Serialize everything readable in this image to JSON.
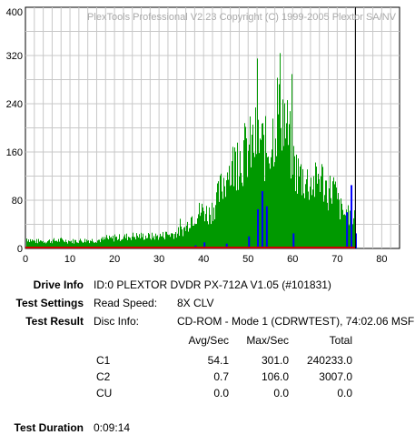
{
  "chart_data": {
    "type": "bar",
    "watermark": "PlexTools Professional V2.23 Copyright (C) 1999-2005 Plextor SA/NV",
    "x_ticks": [
      0,
      10,
      20,
      30,
      40,
      50,
      60,
      70,
      80
    ],
    "y_ticks": [
      0,
      80,
      160,
      240,
      320,
      400
    ],
    "xlim": [
      0,
      84
    ],
    "ylim": [
      0,
      400
    ],
    "grid": true,
    "cursor_x": 74.1,
    "series": [
      {
        "color": "#009900",
        "x": [
          0,
          2,
          4,
          6,
          8,
          10,
          12,
          14,
          16,
          18,
          20,
          22,
          24,
          26,
          28,
          30,
          32,
          34,
          36,
          37,
          38,
          39,
          40,
          41,
          42,
          43,
          44,
          45,
          46,
          47,
          48,
          49,
          50,
          51,
          52,
          53,
          54,
          55,
          56,
          57,
          58,
          59,
          60,
          61,
          62,
          63,
          64,
          65,
          66,
          67,
          68,
          69,
          70,
          71,
          72,
          73,
          74
        ],
        "values": [
          20,
          14,
          14,
          15,
          16,
          14,
          15,
          16,
          16,
          18,
          20,
          22,
          24,
          24,
          23,
          24,
          27,
          30,
          40,
          60,
          65,
          70,
          75,
          65,
          80,
          95,
          120,
          145,
          150,
          170,
          175,
          185,
          190,
          200,
          215,
          200,
          190,
          210,
          240,
          300,
          250,
          215,
          170,
          145,
          140,
          130,
          130,
          125,
          145,
          125,
          110,
          120,
          90,
          70,
          65,
          60,
          75
        ]
      },
      {
        "color": "#0000ff",
        "x": [
          38,
          40,
          45,
          50,
          52,
          53,
          54,
          60,
          72,
          73,
          74
        ],
        "values": [
          5,
          10,
          8,
          20,
          65,
          95,
          70,
          25,
          60,
          105,
          25
        ]
      }
    ]
  },
  "info": {
    "drive_label": "Drive Info",
    "drive_value": "ID:0 PLEXTOR DVDR PX-712A V1.05 (#101831)",
    "settings_label": "Test Settings",
    "read_speed_label": "Read Speed:",
    "read_speed_value": "8X CLV",
    "result_label": "Test Result",
    "disc_info_label": "Disc Info:",
    "disc_info_value": "CD-ROM - Mode 1 (CDRWTEST), 74:02.06 MSF",
    "table_headers": [
      "Avg/Sec",
      "Max/Sec",
      "Total"
    ],
    "table_rows": [
      {
        "name": "C1",
        "avg": "54.1",
        "max": "301.0",
        "total": "240233.0"
      },
      {
        "name": "C2",
        "avg": "0.7",
        "max": "106.0",
        "total": "3007.0"
      },
      {
        "name": "CU",
        "avg": "0.0",
        "max": "0.0",
        "total": "0.0"
      }
    ],
    "duration_label": "Test Duration",
    "duration_value": "0:09:14"
  }
}
